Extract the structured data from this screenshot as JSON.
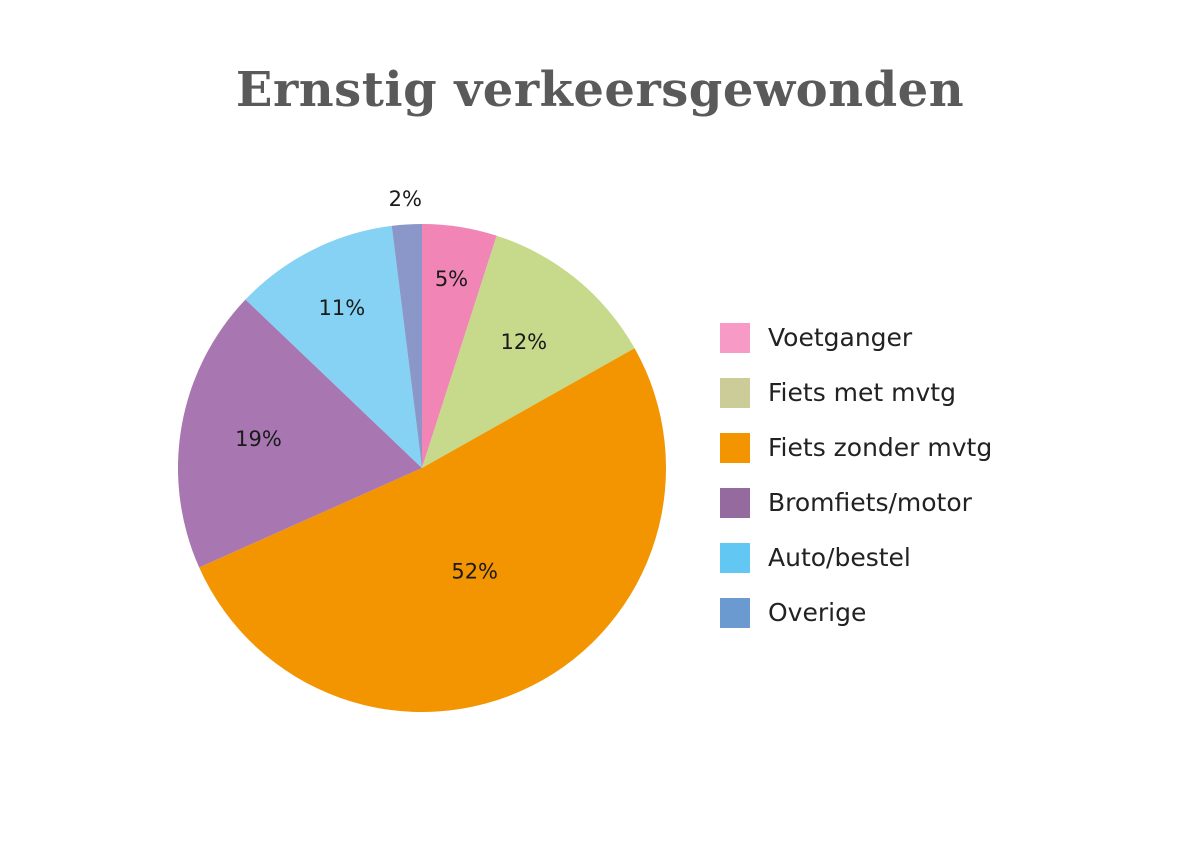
{
  "chart_data": {
    "type": "pie",
    "title": "Ernstig verkeersgewonden",
    "slices": [
      {
        "name": "Voetganger",
        "value": 5,
        "label": "5%",
        "color": "#f085b6",
        "legend_color": "#f79ac6"
      },
      {
        "name": "Fiets met mvtg",
        "value": 12,
        "label": "12%",
        "color": "#c7d98a",
        "legend_color": "#cccc99"
      },
      {
        "name": "Fiets zonder mvtg",
        "value": 52,
        "label": "52%",
        "color": "#f39500",
        "legend_color": "#f39500"
      },
      {
        "name": "Bromfiets/motor",
        "value": 19,
        "label": "19%",
        "color": "#a877b2",
        "legend_color": "#956a9e"
      },
      {
        "name": "Auto/bestel",
        "value": 11,
        "label": "11%",
        "color": "#85d2f4",
        "legend_color": "#62c7f2"
      },
      {
        "name": "Overige",
        "value": 2,
        "label": "2%",
        "color": "#8b97c8",
        "legend_color": "#6a9ad0"
      }
    ],
    "start_angle": "top",
    "direction": "clockwise",
    "legend_position": "right"
  }
}
